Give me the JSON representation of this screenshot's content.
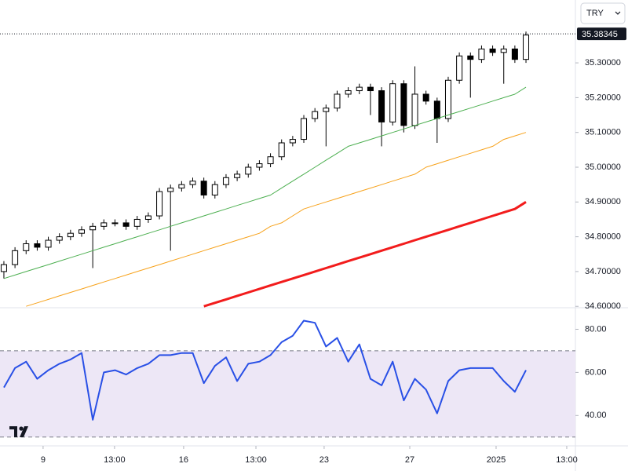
{
  "toolbar": {
    "currency": "TRY"
  },
  "chart_data": [
    {
      "type": "candlestick",
      "up_color": "#ffffff",
      "down_color": "#000000",
      "wick_color": "#000000",
      "x": [
        0,
        1,
        2,
        3,
        4,
        5,
        6,
        7,
        8,
        9,
        10,
        11,
        12,
        13,
        14,
        15,
        16,
        17,
        18,
        19,
        20,
        21,
        22,
        23,
        24,
        25,
        26,
        27,
        28,
        29,
        30,
        31,
        32,
        33,
        34,
        35,
        36,
        37,
        38,
        39,
        40,
        41,
        42,
        43,
        44,
        45,
        46,
        47
      ],
      "open": [
        34.7,
        34.72,
        34.76,
        34.78,
        34.77,
        34.79,
        34.8,
        34.81,
        34.82,
        34.83,
        34.84,
        34.84,
        34.83,
        34.85,
        34.86,
        34.93,
        34.94,
        34.95,
        34.96,
        34.92,
        34.95,
        34.97,
        34.98,
        35.0,
        35.01,
        35.03,
        35.07,
        35.08,
        35.14,
        35.16,
        35.17,
        35.21,
        35.22,
        35.23,
        35.22,
        35.13,
        35.24,
        35.12,
        35.21,
        35.19,
        35.14,
        35.25,
        35.32,
        35.31,
        35.34,
        35.33,
        35.34,
        35.31
      ],
      "high": [
        34.73,
        34.77,
        34.79,
        34.79,
        34.8,
        34.81,
        34.82,
        34.83,
        34.84,
        34.85,
        34.85,
        34.85,
        34.86,
        34.87,
        34.94,
        34.95,
        34.96,
        34.97,
        34.97,
        34.96,
        34.98,
        34.99,
        35.01,
        35.02,
        35.04,
        35.08,
        35.09,
        35.15,
        35.17,
        35.18,
        35.22,
        35.23,
        35.24,
        35.24,
        35.23,
        35.25,
        35.25,
        35.29,
        35.22,
        35.2,
        35.26,
        35.33,
        35.33,
        35.35,
        35.35,
        35.35,
        35.35,
        35.39
      ],
      "low": [
        34.68,
        34.71,
        34.75,
        34.76,
        34.76,
        34.78,
        34.79,
        34.8,
        34.71,
        34.82,
        34.83,
        34.82,
        34.82,
        34.84,
        34.85,
        34.76,
        34.93,
        34.94,
        34.91,
        34.91,
        34.94,
        34.96,
        34.97,
        34.99,
        35.0,
        35.02,
        35.06,
        35.07,
        35.13,
        35.06,
        35.16,
        35.2,
        35.21,
        35.15,
        35.06,
        35.12,
        35.1,
        35.11,
        35.18,
        35.07,
        35.13,
        35.24,
        35.2,
        35.3,
        35.32,
        35.24,
        35.3,
        35.3
      ],
      "close": [
        34.72,
        34.76,
        34.78,
        34.77,
        34.79,
        34.8,
        34.81,
        34.82,
        34.83,
        34.84,
        34.84,
        34.83,
        34.85,
        34.86,
        34.93,
        34.94,
        34.95,
        34.96,
        34.92,
        34.95,
        34.97,
        34.98,
        35.0,
        35.01,
        35.03,
        35.07,
        35.08,
        35.14,
        35.16,
        35.17,
        35.21,
        35.22,
        35.23,
        35.22,
        35.13,
        35.24,
        35.12,
        35.21,
        35.19,
        35.14,
        35.25,
        35.32,
        35.31,
        35.34,
        35.33,
        35.34,
        35.31,
        35.38
      ],
      "overlays": [
        {
          "color": "#4caf50",
          "line_width": 1,
          "values": [
            34.68,
            34.69,
            34.7,
            34.71,
            34.72,
            34.73,
            34.74,
            34.75,
            34.76,
            34.77,
            34.78,
            34.79,
            34.8,
            34.81,
            34.82,
            34.83,
            34.84,
            34.85,
            34.86,
            34.87,
            34.88,
            34.89,
            34.9,
            34.91,
            34.92,
            34.94,
            34.96,
            34.98,
            35.0,
            35.02,
            35.04,
            35.06,
            35.07,
            35.08,
            35.09,
            35.1,
            35.11,
            35.12,
            35.13,
            35.14,
            35.15,
            35.16,
            35.17,
            35.18,
            35.19,
            35.2,
            35.21,
            35.23
          ]
        },
        {
          "color": "#f7a21b",
          "line_width": 1,
          "values": [
            null,
            null,
            34.6,
            34.61,
            34.62,
            34.63,
            34.64,
            34.65,
            34.66,
            34.67,
            34.68,
            34.69,
            34.7,
            34.71,
            34.72,
            34.73,
            34.74,
            34.75,
            34.76,
            34.77,
            34.78,
            34.79,
            34.8,
            34.81,
            34.83,
            34.84,
            34.86,
            34.88,
            34.89,
            34.9,
            34.91,
            34.92,
            34.93,
            34.94,
            34.95,
            34.96,
            34.97,
            34.98,
            35.0,
            35.01,
            35.02,
            35.03,
            35.04,
            35.05,
            35.06,
            35.08,
            35.09,
            35.1
          ]
        },
        {
          "color": "#f21c1c",
          "line_width": 3,
          "values": [
            null,
            null,
            null,
            null,
            null,
            null,
            null,
            null,
            null,
            null,
            null,
            null,
            null,
            null,
            null,
            null,
            null,
            null,
            34.6,
            34.61,
            34.62,
            34.63,
            34.64,
            34.65,
            34.66,
            34.67,
            34.68,
            34.69,
            34.7,
            34.71,
            34.72,
            34.73,
            34.74,
            34.75,
            34.76,
            34.77,
            34.78,
            34.79,
            34.8,
            34.81,
            34.82,
            34.83,
            34.84,
            34.85,
            34.86,
            34.87,
            34.88,
            34.9
          ]
        }
      ],
      "last_price": 35.38345,
      "xlim": [
        -0.35,
        51.45
      ],
      "xticks": [
        {
          "value": 3.53,
          "label": "9"
        },
        {
          "value": 9.96,
          "label": "13:00"
        },
        {
          "value": 16.18,
          "label": "16"
        },
        {
          "value": 22.69,
          "label": "13:00"
        },
        {
          "value": 28.83,
          "label": "23"
        },
        {
          "value": 36.54,
          "label": "27"
        },
        {
          "value": 44.31,
          "label": "2025"
        },
        {
          "value": 50.67,
          "label": "13:00"
        }
      ],
      "ylim": [
        34.596,
        35.395
      ],
      "yticks": [
        {
          "value": 34.6,
          "label": "34.60000"
        },
        {
          "value": 34.7,
          "label": "34.70000"
        },
        {
          "value": 34.8,
          "label": "34.80000"
        },
        {
          "value": 34.9,
          "label": "34.90000"
        },
        {
          "value": 35.0,
          "label": "35.00000"
        },
        {
          "value": 35.1,
          "label": "35.10000"
        },
        {
          "value": 35.2,
          "label": "35.20000"
        },
        {
          "value": 35.3,
          "label": "35.30000"
        }
      ]
    },
    {
      "type": "line",
      "color": "#2950e6",
      "values": [
        53,
        62,
        65,
        57,
        61,
        64,
        66,
        69,
        38,
        60,
        61,
        59,
        62,
        64,
        68,
        68,
        69,
        69,
        55,
        63,
        67,
        56,
        64,
        65,
        68,
        74,
        77,
        84,
        83,
        72,
        76,
        65,
        73,
        57,
        54,
        65,
        47,
        57,
        52,
        41,
        56,
        61,
        62,
        62,
        62,
        56,
        51,
        61
      ],
      "band": [
        30,
        70
      ],
      "band_color": "#ede7f6",
      "ylim": [
        27,
        90
      ],
      "yticks": [
        {
          "value": 40,
          "label": "40.00"
        },
        {
          "value": 60,
          "label": "60.00"
        },
        {
          "value": 80,
          "label": "80.00"
        }
      ]
    }
  ]
}
